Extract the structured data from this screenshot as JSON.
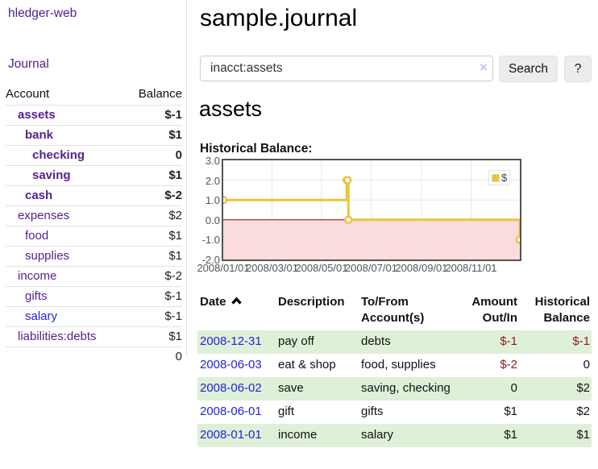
{
  "app": {
    "title": "hledger-web"
  },
  "sidebar": {
    "nav_journal": "Journal",
    "accounts_table": {
      "headers": {
        "account": "Account",
        "balance": "Balance"
      },
      "rows": [
        {
          "label": "assets",
          "balance": "$-1",
          "depth": 1,
          "bold": true,
          "neg": "strong",
          "link": "purple"
        },
        {
          "label": "bank",
          "balance": "$1",
          "depth": 2,
          "bold": true,
          "neg": "none",
          "link": "purple"
        },
        {
          "label": "checking",
          "balance": "0",
          "depth": 3,
          "bold": true,
          "neg": "none",
          "link": "purple"
        },
        {
          "label": "saving",
          "balance": "$1",
          "depth": 3,
          "bold": true,
          "neg": "none",
          "link": "purple"
        },
        {
          "label": "cash",
          "balance": "$-2",
          "depth": 2,
          "bold": true,
          "neg": "strong",
          "link": "purple"
        },
        {
          "label": "expenses",
          "balance": "$2",
          "depth": 1,
          "bold": false,
          "neg": "none",
          "link": "purple"
        },
        {
          "label": "food",
          "balance": "$1",
          "depth": 2,
          "bold": false,
          "neg": "none",
          "link": "purple"
        },
        {
          "label": "supplies",
          "balance": "$1",
          "depth": 2,
          "bold": false,
          "neg": "none",
          "link": "purple"
        },
        {
          "label": "income",
          "balance": "$-2",
          "depth": 1,
          "bold": false,
          "neg": "soft",
          "link": "purple"
        },
        {
          "label": "gifts",
          "balance": "$-1",
          "depth": 2,
          "bold": false,
          "neg": "soft",
          "link": "purple"
        },
        {
          "label": "salary",
          "balance": "$-1",
          "depth": 2,
          "bold": false,
          "neg": "soft",
          "link": "blue"
        },
        {
          "label": "liabilities:debts",
          "balance": "$1",
          "depth": 1,
          "bold": false,
          "neg": "none",
          "link": "purple"
        }
      ],
      "total": "0"
    }
  },
  "main": {
    "title": "sample.journal",
    "search": {
      "value": "inacct:assets",
      "clear_label": "×",
      "button_label": "Search",
      "help_label": "?"
    },
    "account_heading": "assets",
    "chart_label": "Historical Balance:",
    "register_table": {
      "headers": {
        "date": "Date",
        "description": "Description",
        "accounts": "To/From\nAccount(s)",
        "amount": "Amount\nOut/In",
        "balance": "Historical\nBalance"
      },
      "rows": [
        {
          "date": "2008-12-31",
          "description": "pay off",
          "accounts": "debts",
          "amount": "$-1",
          "balance": "$-1",
          "amount_neg": true,
          "balance_neg": true
        },
        {
          "date": "2008-06-03",
          "description": "eat & shop",
          "accounts": "food, supplies",
          "amount": "$-2",
          "balance": "0",
          "amount_neg": true,
          "balance_neg": false
        },
        {
          "date": "2008-06-02",
          "description": "save",
          "accounts": "saving, checking",
          "amount": "0",
          "balance": "$2",
          "amount_neg": false,
          "balance_neg": false
        },
        {
          "date": "2008-06-01",
          "description": "gift",
          "accounts": "gifts",
          "amount": "$1",
          "balance": "$2",
          "amount_neg": false,
          "balance_neg": false
        },
        {
          "date": "2008-01-01",
          "description": "income",
          "accounts": "salary",
          "amount": "$1",
          "balance": "$1",
          "amount_neg": false,
          "balance_neg": false
        }
      ]
    }
  },
  "chart_data": {
    "type": "line",
    "title": "Historical Balance:",
    "series": [
      {
        "name": "$",
        "color": "#edc240",
        "step": true,
        "points": [
          {
            "x": "2008-01-01",
            "y": 1
          },
          {
            "x": "2008-06-01",
            "y": 2
          },
          {
            "x": "2008-06-02",
            "y": 2
          },
          {
            "x": "2008-06-03",
            "y": 0
          },
          {
            "x": "2008-12-31",
            "y": -1
          }
        ]
      }
    ],
    "xlabel": "",
    "ylabel": "",
    "x_ticks": [
      "2008/01/01",
      "2008/03/01",
      "2008/05/01",
      "2008/07/01",
      "2008/09/01",
      "2008/11/01"
    ],
    "y_ticks": [
      3.0,
      2.0,
      1.0,
      0.0,
      -1.0,
      -2.0
    ],
    "xlim": [
      "2008-01-01",
      "2008-12-31"
    ],
    "ylim": [
      -2,
      3
    ],
    "grid": true,
    "legend_position": "top-right",
    "negative_region": true
  },
  "colors": {
    "accent_purple": "#54238f",
    "link_blue": "#2323d9",
    "negative_strong": "#8b1212",
    "negative_soft": "#b56666",
    "negative_table": "#8f1d1d",
    "row_stripe_green": "#dff0d8",
    "series_gold": "#edc240",
    "negative_region_pink": "#fbdcdc",
    "zero_line_red": "#8b0000",
    "chart_border": "#545454",
    "grid_line": "#e7e7e7"
  }
}
